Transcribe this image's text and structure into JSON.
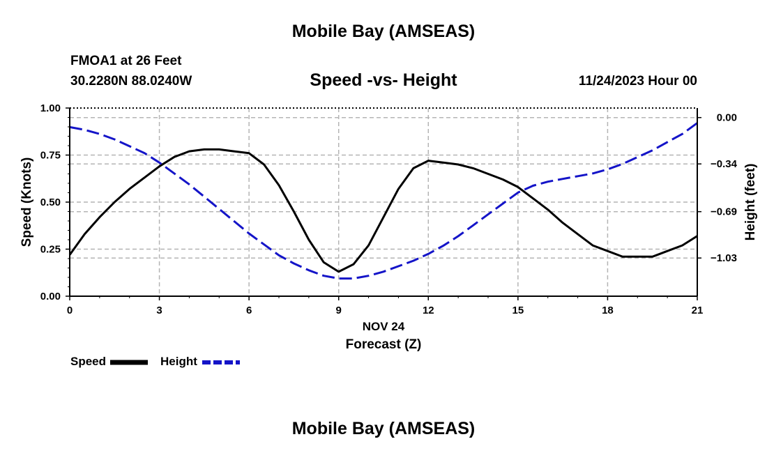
{
  "header": {
    "title": "Mobile Bay (AMSEAS)",
    "station": "FMOA1 at 26 Feet",
    "coords": "30.2280N  88.0240W",
    "subtitle": "Speed -vs- Height",
    "datetime": "11/24/2023 Hour 00",
    "footer_title": "Mobile Bay (AMSEAS)"
  },
  "legend": {
    "speed_label": "Speed",
    "height_label": "Height"
  },
  "colors": {
    "speed": "#000000",
    "height": "#1414c8",
    "grid": "#b4b4b4"
  },
  "chart_data": {
    "type": "line",
    "xlabel_top": "NOV 24",
    "xlabel": "Forecast (Z)",
    "ylabel_left": "Speed (Knots)",
    "ylabel_right": "Height (feet)",
    "xlim": [
      0,
      21
    ],
    "ylim_left": [
      0,
      1
    ],
    "ylim_right": [
      -1.31,
      0.07
    ],
    "x_ticks": [
      "0",
      "3",
      "6",
      "9",
      "12",
      "15",
      "18",
      "21"
    ],
    "y_ticks_left": [
      "0.00",
      "0.25",
      "0.50",
      "0.75",
      "1.00"
    ],
    "y_ticks_right": [
      "0.00",
      "−0.34",
      "−0.69",
      "−1.03"
    ],
    "y_ticks_right_values": [
      0.0,
      -0.34,
      -0.69,
      -1.03
    ],
    "grid": true,
    "legend_position": "bottom-left",
    "series": [
      {
        "name": "Speed",
        "axis": "left",
        "style": "solid",
        "x": [
          0,
          0.5,
          1,
          1.5,
          2,
          2.5,
          3,
          3.5,
          4,
          4.5,
          5,
          5.5,
          6,
          6.5,
          7,
          7.5,
          8,
          8.5,
          9,
          9.5,
          10,
          10.5,
          11,
          11.5,
          12,
          12.5,
          13,
          13.5,
          14,
          14.5,
          15,
          15.5,
          16,
          16.5,
          17,
          17.5,
          18,
          18.5,
          19,
          19.5,
          20,
          20.5,
          21
        ],
        "values": [
          0.22,
          0.33,
          0.42,
          0.5,
          0.57,
          0.63,
          0.69,
          0.74,
          0.77,
          0.78,
          0.78,
          0.77,
          0.76,
          0.7,
          0.59,
          0.45,
          0.3,
          0.18,
          0.13,
          0.17,
          0.27,
          0.42,
          0.57,
          0.68,
          0.72,
          0.71,
          0.7,
          0.68,
          0.65,
          0.62,
          0.58,
          0.52,
          0.46,
          0.39,
          0.33,
          0.27,
          0.24,
          0.21,
          0.21,
          0.21,
          0.24,
          0.27,
          0.32
        ]
      },
      {
        "name": "Height",
        "axis": "right",
        "style": "dashed",
        "x": [
          0,
          0.5,
          1,
          1.5,
          2,
          2.5,
          3,
          3.5,
          4,
          4.5,
          5,
          5.5,
          6,
          6.5,
          7,
          7.5,
          8,
          8.5,
          9,
          9.5,
          10,
          10.5,
          11,
          11.5,
          12,
          12.5,
          13,
          13.5,
          14,
          14.5,
          15,
          15.5,
          16,
          16.5,
          17,
          17.5,
          18,
          18.5,
          19,
          19.5,
          20,
          20.5,
          21
        ],
        "values": [
          -0.07,
          -0.09,
          -0.12,
          -0.16,
          -0.21,
          -0.26,
          -0.33,
          -0.41,
          -0.49,
          -0.58,
          -0.67,
          -0.76,
          -0.85,
          -0.93,
          -1.01,
          -1.07,
          -1.12,
          -1.16,
          -1.18,
          -1.18,
          -1.16,
          -1.13,
          -1.09,
          -1.05,
          -1.0,
          -0.94,
          -0.87,
          -0.79,
          -0.71,
          -0.63,
          -0.55,
          -0.5,
          -0.47,
          -0.45,
          -0.43,
          -0.41,
          -0.38,
          -0.34,
          -0.29,
          -0.24,
          -0.18,
          -0.12,
          -0.04
        ]
      }
    ]
  }
}
